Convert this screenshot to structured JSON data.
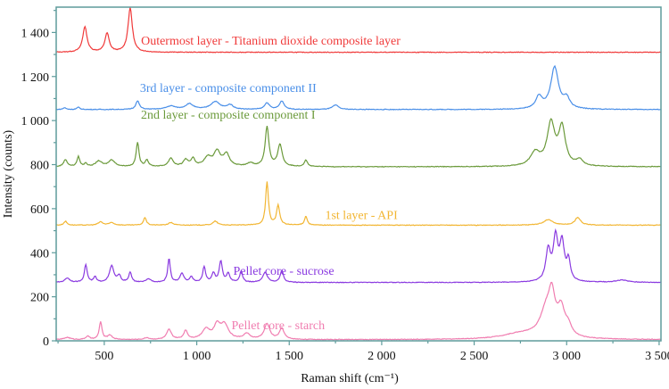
{
  "chart_data": {
    "type": "line",
    "title": "",
    "xlabel": "Raman shift (cm⁻¹)",
    "ylabel": "Intensity (counts)",
    "xlim": [
      240,
      3510
    ],
    "ylim": [
      0,
      1515
    ],
    "xticks": [
      500,
      1000,
      1500,
      2000,
      2500,
      3000,
      3500
    ],
    "xtick_labels": [
      "500",
      "1 000",
      "1 500",
      "2 000",
      "2 500",
      "3 000",
      "3 500"
    ],
    "yticks": [
      0,
      200,
      400,
      600,
      800,
      1000,
      1200,
      1400
    ],
    "ytick_labels": [
      "0",
      "200",
      "400",
      "600",
      "800",
      "1 000",
      "1 200",
      "1 400"
    ],
    "grid": false,
    "legend": "inline labels",
    "series": [
      {
        "name": "Outermost layer - Titanium dioxide composite layer",
        "color": "#f03a3a",
        "baseline": 1310,
        "label_at": [
          1400,
          1345
        ],
        "peaks": [
          [
            395,
            115,
            14
          ],
          [
            515,
            85,
            14
          ],
          [
            640,
            200,
            14
          ]
        ]
      },
      {
        "name": "3rd layer - composite component II",
        "color": "#4a8fe8",
        "baseline": 1050,
        "label_at": [
          1170,
          1130
        ],
        "peaks": [
          [
            285,
            8,
            10
          ],
          [
            360,
            10,
            10
          ],
          [
            680,
            38,
            12
          ],
          [
            860,
            15,
            30
          ],
          [
            960,
            25,
            25
          ],
          [
            1100,
            35,
            30
          ],
          [
            1180,
            20,
            20
          ],
          [
            1380,
            30,
            15
          ],
          [
            1460,
            38,
            15
          ],
          [
            1750,
            20,
            20
          ],
          [
            2850,
            55,
            20
          ],
          [
            2935,
            190,
            25
          ],
          [
            3000,
            45,
            20
          ]
        ]
      },
      {
        "name": "2nd layer - composite component I",
        "color": "#6b9a3b",
        "baseline": 790,
        "label_at": [
          1170,
          1008
        ],
        "peaks": [
          [
            290,
            32,
            12
          ],
          [
            360,
            45,
            9
          ],
          [
            400,
            15,
            8
          ],
          [
            470,
            25,
            20
          ],
          [
            540,
            30,
            20
          ],
          [
            680,
            110,
            9
          ],
          [
            730,
            30,
            10
          ],
          [
            860,
            38,
            15
          ],
          [
            940,
            30,
            15
          ],
          [
            980,
            35,
            12
          ],
          [
            1060,
            40,
            25
          ],
          [
            1110,
            65,
            20
          ],
          [
            1160,
            55,
            20
          ],
          [
            1290,
            15,
            20
          ],
          [
            1380,
            180,
            12
          ],
          [
            1450,
            100,
            14
          ],
          [
            1590,
            30,
            10
          ],
          [
            2830,
            60,
            30
          ],
          [
            2915,
            190,
            25
          ],
          [
            2975,
            170,
            22
          ],
          [
            3070,
            28,
            20
          ]
        ]
      },
      {
        "name": "1st layer - API",
        "color": "#f2b633",
        "baseline": 525,
        "label_at": [
          1890,
          552
        ],
        "peaks": [
          [
            290,
            18,
            10
          ],
          [
            480,
            15,
            15
          ],
          [
            540,
            12,
            15
          ],
          [
            720,
            35,
            9
          ],
          [
            860,
            12,
            15
          ],
          [
            1100,
            18,
            15
          ],
          [
            1380,
            195,
            9
          ],
          [
            1440,
            90,
            10
          ],
          [
            1590,
            40,
            9
          ],
          [
            2900,
            25,
            30
          ],
          [
            3060,
            35,
            18
          ]
        ]
      },
      {
        "name": "Pellet core - sucrose",
        "color": "#8a3ae0",
        "baseline": 265,
        "label_at": [
          1470,
          300
        ],
        "peaks": [
          [
            300,
            20,
            15
          ],
          [
            400,
            80,
            9
          ],
          [
            450,
            25,
            8
          ],
          [
            540,
            75,
            14
          ],
          [
            580,
            30,
            10
          ],
          [
            640,
            45,
            9
          ],
          [
            740,
            15,
            15
          ],
          [
            850,
            110,
            8
          ],
          [
            920,
            40,
            12
          ],
          [
            970,
            25,
            10
          ],
          [
            1040,
            70,
            9
          ],
          [
            1090,
            40,
            10
          ],
          [
            1130,
            95,
            10
          ],
          [
            1170,
            40,
            10
          ],
          [
            1240,
            50,
            9
          ],
          [
            1370,
            45,
            15
          ],
          [
            1460,
            55,
            10
          ],
          [
            2900,
            140,
            15
          ],
          [
            2940,
            190,
            15
          ],
          [
            2975,
            170,
            15
          ],
          [
            3010,
            90,
            12
          ],
          [
            3300,
            10,
            40
          ]
        ]
      },
      {
        "name": "Pellet core - starch",
        "color": "#f07db0",
        "baseline": 5,
        "label_at": [
          1440,
          52
        ],
        "peaks": [
          [
            300,
            10,
            20
          ],
          [
            410,
            15,
            12
          ],
          [
            480,
            80,
            9
          ],
          [
            530,
            20,
            15
          ],
          [
            730,
            8,
            15
          ],
          [
            850,
            45,
            15
          ],
          [
            940,
            40,
            12
          ],
          [
            1050,
            45,
            25
          ],
          [
            1110,
            60,
            20
          ],
          [
            1150,
            65,
            25
          ],
          [
            1270,
            25,
            20
          ],
          [
            1380,
            70,
            18
          ],
          [
            1460,
            50,
            15
          ],
          [
            2750,
            25,
            120
          ],
          [
            2890,
            120,
            40
          ],
          [
            2920,
            150,
            20
          ],
          [
            2970,
            120,
            25
          ],
          [
            3010,
            40,
            20
          ]
        ]
      }
    ]
  }
}
